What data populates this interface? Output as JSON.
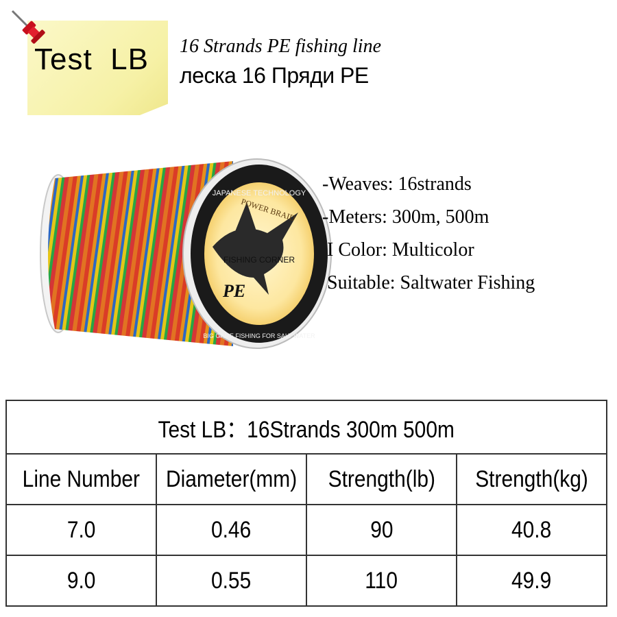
{
  "note": {
    "title": "Test  LB"
  },
  "heading": {
    "english": "16 Strands PE fishing line",
    "russian": "леска 16 Пряди PE"
  },
  "spool_label": {
    "arc_top": "JAPANESE TECHNOLOGY",
    "power": "POWER BRAID",
    "brand": "FISHING CORNER",
    "pe": "PE",
    "arc_bottom": "BIG GAME FISHING FOR SALT WATER"
  },
  "specs": [
    "-Weaves: 16strands",
    "-Meters: 300m, 500m",
    " I Color: Multicolor",
    " Suitable: Saltwater Fishing"
  ],
  "table": {
    "title": "Test LB：16Strands 300m 500m",
    "headers": [
      "Line Number",
      "Diameter(mm)",
      "Strength(lb)",
      "Strength(kg)"
    ],
    "rows": [
      [
        "7.0",
        "0.46",
        "90",
        "40.8"
      ],
      [
        "9.0",
        "0.55",
        "110",
        "49.9"
      ]
    ]
  },
  "colors": {
    "note_yellow": "#f6f1a6",
    "pin_red": "#e2202e",
    "spool_label_bg": "#fde7a0"
  }
}
